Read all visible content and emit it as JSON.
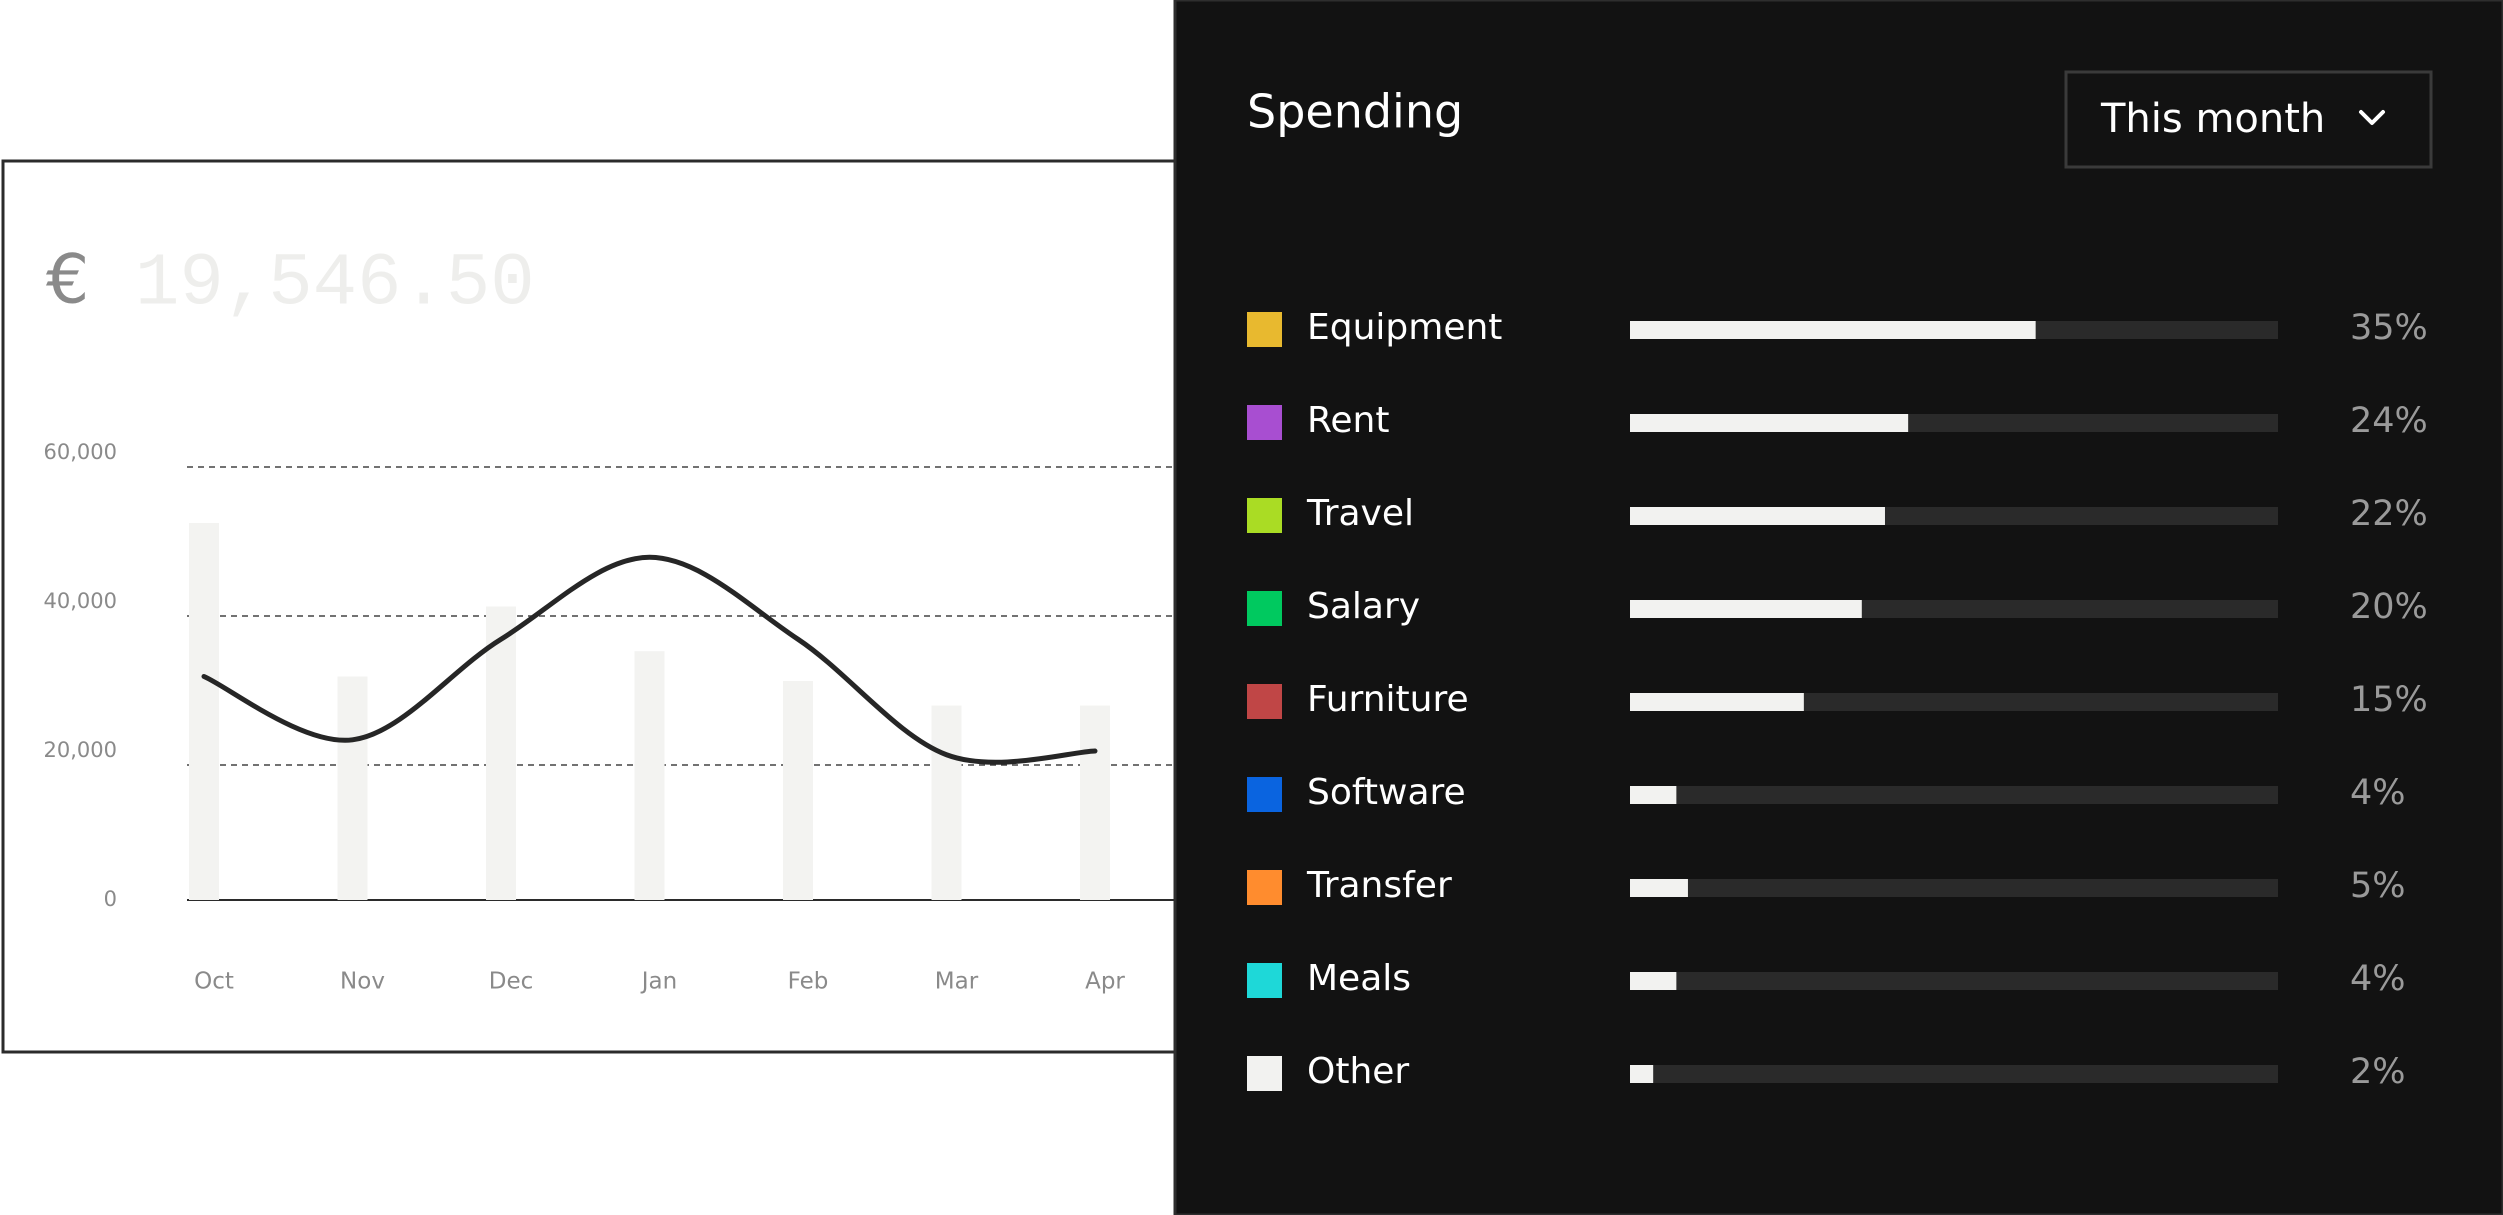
{
  "balance": {
    "currency": "€",
    "amount": "19,546.50"
  },
  "chart_data": {
    "type": "bar-line",
    "categories": [
      "Oct",
      "Nov",
      "Dec",
      "Jan",
      "Feb",
      "Mar",
      "Apr"
    ],
    "series": [
      {
        "type": "bar",
        "color": "#f3f3f1",
        "values": [
          50600,
          30000,
          39400,
          33400,
          29400,
          26100,
          26100
        ]
      },
      {
        "type": "line",
        "color": "#262626",
        "values": [
          30000,
          21500,
          35000,
          46000,
          35000,
          19500,
          20000
        ]
      }
    ],
    "ylim": [
      0,
      60000
    ],
    "yticks": [
      0,
      {
        "value": 20000,
        "label": "20,000"
      },
      {
        "value": 40000,
        "label": "40,000"
      },
      {
        "value": 60000,
        "label": "60,000"
      }
    ],
    "grid": true
  },
  "spending": {
    "title": "Spending",
    "period": "This month",
    "items": [
      {
        "name": "Equipment",
        "color": "#e8b92f",
        "value": 35,
        "value_label": "35%"
      },
      {
        "name": "Rent",
        "color": "#a84ed1",
        "value": 24,
        "value_label": "24%"
      },
      {
        "name": "Travel",
        "color": "#aadc24",
        "value": 22,
        "value_label": "22%"
      },
      {
        "name": "Salary",
        "color": "#00c95f",
        "value": 20,
        "value_label": "20%"
      },
      {
        "name": "Furniture",
        "color": "#c04646",
        "value": 15,
        "value_label": "15%"
      },
      {
        "name": "Software",
        "color": "#0a64e0",
        "value": 4,
        "value_label": "4%"
      },
      {
        "name": "Transfer",
        "color": "#ff8c2e",
        "value": 5,
        "value_label": "5%"
      },
      {
        "name": "Meals",
        "color": "#1ed8d8",
        "value": 4,
        "value_label": "4%"
      },
      {
        "name": "Other",
        "color": "#f2f2f0",
        "value": 2,
        "value_label": "2%"
      }
    ]
  }
}
